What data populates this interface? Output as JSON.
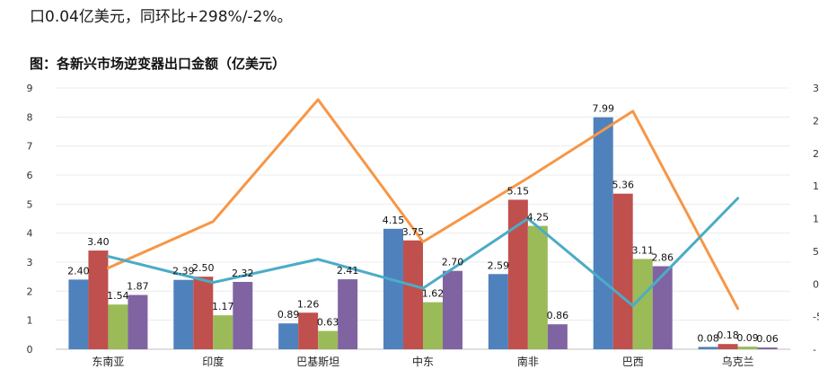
{
  "intro_text": "口0.04亿美元，同环比+298%/-2%。",
  "chart_data": {
    "type": "bar+line",
    "title": "图：各新兴市场逆变器出口金额（亿美元）",
    "categories": [
      "东南亚",
      "印度",
      "巴基斯坦",
      "中东",
      "南非",
      "巴西",
      "乌克兰"
    ],
    "ylim": [
      0,
      9
    ],
    "yticks": [
      0,
      1,
      2,
      3,
      4,
      5,
      6,
      7,
      8,
      9
    ],
    "series": [
      {
        "name": "series-1",
        "color": "#4F81BD",
        "values": [
          2.4,
          2.39,
          0.89,
          4.15,
          2.59,
          7.99,
          0.08
        ]
      },
      {
        "name": "series-2",
        "color": "#C0504D",
        "values": [
          3.4,
          2.5,
          1.26,
          3.75,
          5.15,
          5.36,
          0.18
        ]
      },
      {
        "name": "series-3",
        "color": "#9BBB59",
        "values": [
          1.54,
          1.17,
          0.63,
          1.62,
          4.25,
          3.11,
          0.09
        ]
      },
      {
        "name": "series-4",
        "color": "#8064A2",
        "values": [
          1.87,
          2.32,
          2.41,
          2.7,
          0.86,
          2.86,
          0.06
        ]
      }
    ],
    "labels": [
      [
        "2.40",
        "2.39",
        "0.89",
        "4.15",
        "2.59",
        "7.99",
        "0.08"
      ],
      [
        "3.40",
        "2.50",
        "1.26",
        "3.75",
        "5.15",
        "5.36",
        "0.18"
      ],
      [
        "1.54",
        "1.17",
        "0.63",
        "1.62",
        "4.25",
        "3.11",
        "0.09"
      ],
      [
        "1.87",
        "2.32",
        "2.41",
        "2.70",
        "0.86",
        "2.86",
        "0.06"
      ]
    ],
    "secondary_axis": {
      "ticks_visible": [
        "3",
        "2",
        "2",
        "1",
        "1",
        "5",
        "0",
        "-5",
        "-"
      ]
    },
    "lines": [
      {
        "name": "line-orange",
        "color": "#F79646",
        "values_primary_scale": [
          2.8,
          4.4,
          8.6,
          3.7,
          5.9,
          8.2,
          1.4
        ]
      },
      {
        "name": "line-teal",
        "color": "#4BACC6",
        "values_primary_scale": [
          3.2,
          2.3,
          3.1,
          2.1,
          4.5,
          1.5,
          5.2
        ]
      }
    ]
  }
}
